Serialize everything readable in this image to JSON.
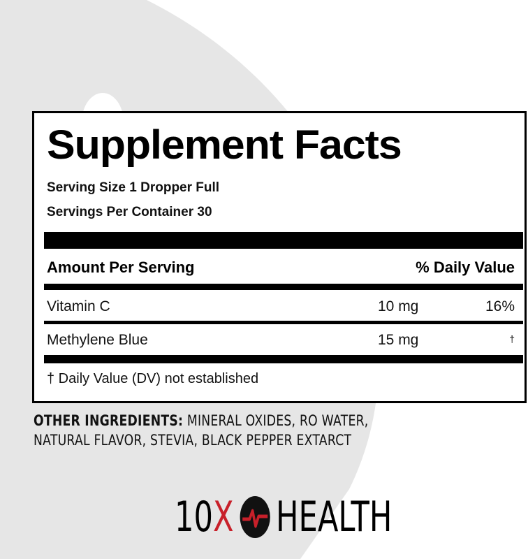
{
  "colors": {
    "brand_red": "#c8202a",
    "background_shape": "#e6e6e6"
  },
  "panel": {
    "title": "Supplement Facts",
    "serving_size": "Serving Size 1 Dropper Full",
    "servings_per_container": "Servings Per Container 30",
    "header": {
      "amount": "Amount Per Serving",
      "dv": "% Daily Value"
    },
    "rows": [
      {
        "name": "Vitamin C",
        "amount": "10 mg",
        "dv": "16%"
      },
      {
        "name": "Methylene Blue",
        "amount": "15 mg",
        "dv": "†"
      }
    ],
    "footnote": "† Daily Value (DV) not established"
  },
  "other": {
    "label": "OTHER INGREDIENTS:",
    "text": " MINERAL OXIDES, RO WATER,",
    "line2": "NATURAL FLAVOR, STEVIA, BLACK PEPPER EXTARCT"
  },
  "logo": {
    "part1": "10",
    "x": "X",
    "part2": "HEALTH",
    "icon": "heartbeat-icon"
  }
}
